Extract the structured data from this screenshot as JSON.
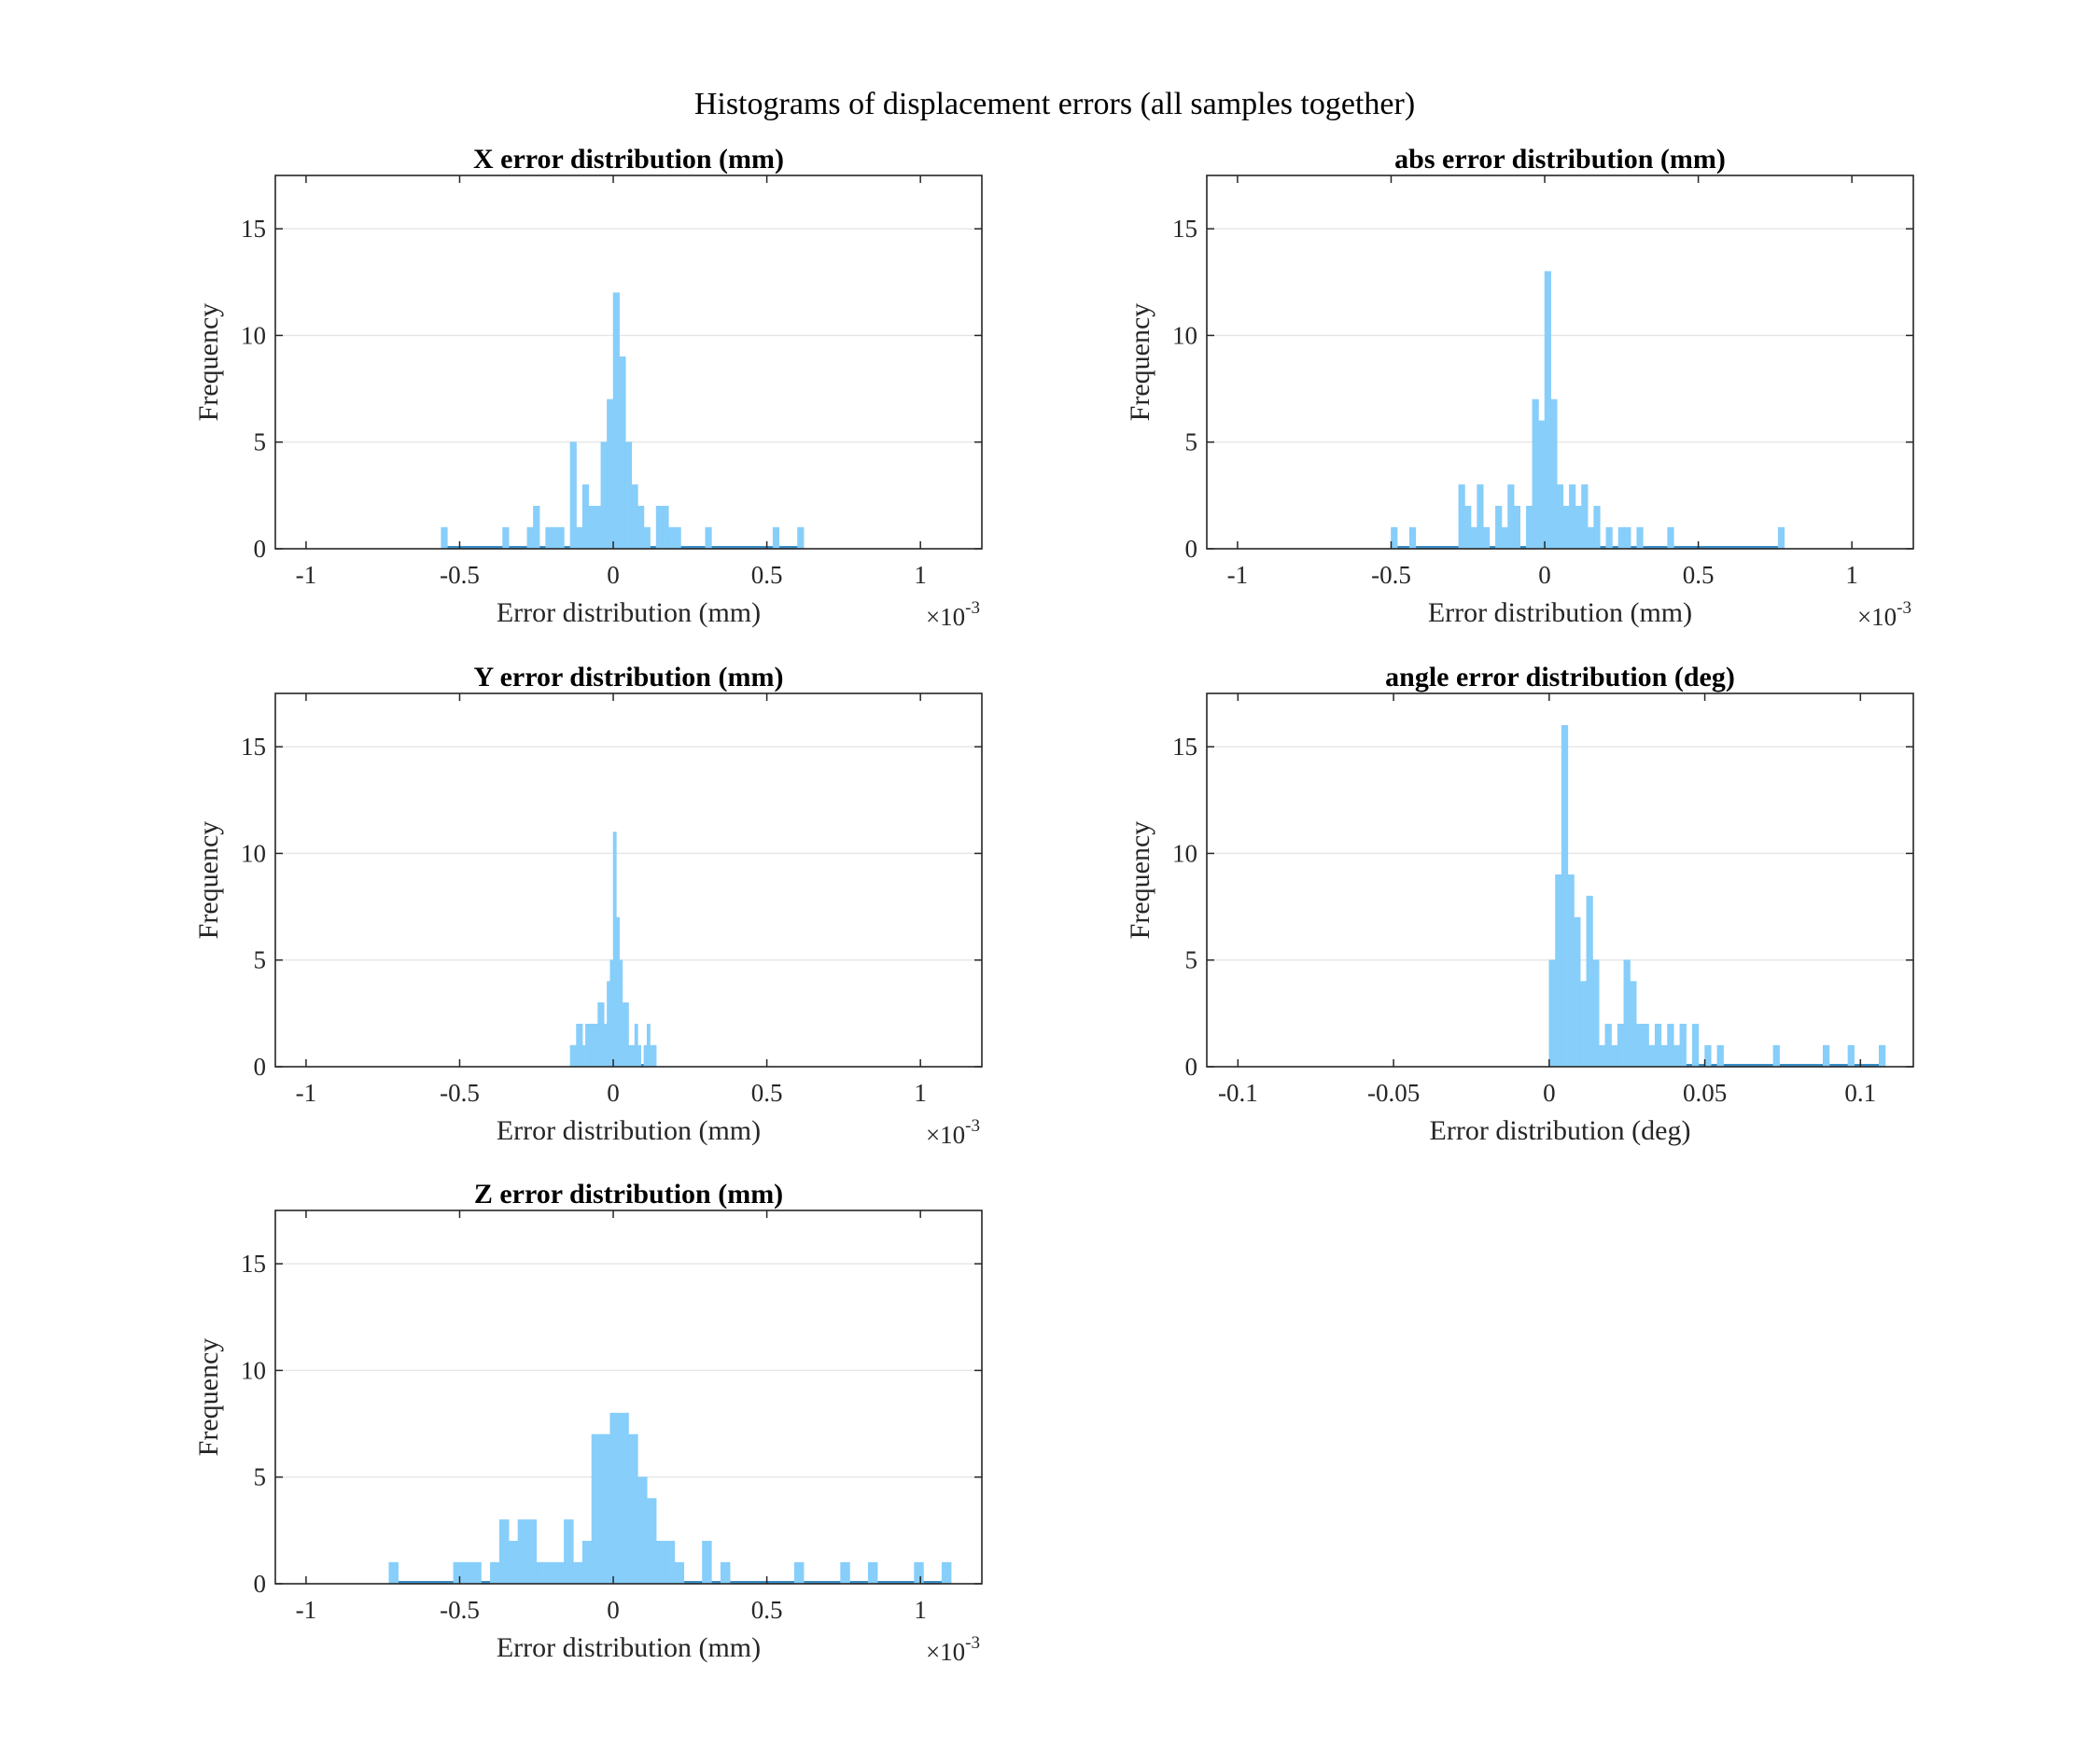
{
  "figure": {
    "title": "Histograms of displacement errors (all samples together)"
  },
  "colors": {
    "bar": "#87CEFA",
    "baseline": "#3a8fc6",
    "axis": "#262626",
    "grid": "#e6e6e6"
  },
  "chart_data": [
    {
      "id": "x",
      "type": "bar",
      "title": "X error distribution (mm)",
      "xlabel": "Error distribution (mm)",
      "ylabel": "Frequency",
      "x_exponent": {
        "base": "×10",
        "power": "-3"
      },
      "xlim": [
        -1.1,
        1.2
      ],
      "ylim": [
        0,
        17.5
      ],
      "xticks": [
        -1,
        -0.5,
        0,
        0.5,
        1
      ],
      "xtick_labels": [
        "-1",
        "-0.5",
        "0",
        "0.5",
        "1"
      ],
      "yticks": [
        0,
        5,
        10,
        15
      ],
      "ytick_labels": [
        "0",
        "5",
        "10",
        "15"
      ],
      "grid": true,
      "bin_width": 0.02,
      "bins": [
        {
          "x": -0.56,
          "count": 1
        },
        {
          "x": -0.36,
          "count": 1
        },
        {
          "x": -0.28,
          "count": 1
        },
        {
          "x": -0.26,
          "count": 2
        },
        {
          "x": -0.22,
          "count": 1
        },
        {
          "x": -0.2,
          "count": 1
        },
        {
          "x": -0.18,
          "count": 1
        },
        {
          "x": -0.14,
          "count": 5
        },
        {
          "x": -0.12,
          "count": 1
        },
        {
          "x": -0.1,
          "count": 3
        },
        {
          "x": -0.08,
          "count": 2
        },
        {
          "x": -0.06,
          "count": 2
        },
        {
          "x": -0.04,
          "count": 5
        },
        {
          "x": -0.02,
          "count": 7
        },
        {
          "x": 0.0,
          "count": 12
        },
        {
          "x": 0.02,
          "count": 9
        },
        {
          "x": 0.04,
          "count": 5
        },
        {
          "x": 0.06,
          "count": 3
        },
        {
          "x": 0.08,
          "count": 2
        },
        {
          "x": 0.1,
          "count": 1
        },
        {
          "x": 0.14,
          "count": 2
        },
        {
          "x": 0.16,
          "count": 2
        },
        {
          "x": 0.18,
          "count": 1
        },
        {
          "x": 0.2,
          "count": 1
        },
        {
          "x": 0.3,
          "count": 1
        },
        {
          "x": 0.52,
          "count": 1
        },
        {
          "x": 0.6,
          "count": 1
        }
      ]
    },
    {
      "id": "abs",
      "type": "bar",
      "title": "abs error distribution (mm)",
      "xlabel": "Error distribution (mm)",
      "ylabel": "Frequency",
      "x_exponent": {
        "base": "×10",
        "power": "-3"
      },
      "xlim": [
        -1.1,
        1.2
      ],
      "ylim": [
        0,
        17.5
      ],
      "xticks": [
        -1,
        -0.5,
        0,
        0.5,
        1
      ],
      "xtick_labels": [
        "-1",
        "-0.5",
        "0",
        "0.5",
        "1"
      ],
      "yticks": [
        0,
        5,
        10,
        15
      ],
      "ytick_labels": [
        "0",
        "5",
        "10",
        "15"
      ],
      "grid": true,
      "bin_width": 0.02,
      "bins": [
        {
          "x": -0.5,
          "count": 1
        },
        {
          "x": -0.44,
          "count": 1
        },
        {
          "x": -0.28,
          "count": 3
        },
        {
          "x": -0.26,
          "count": 2
        },
        {
          "x": -0.24,
          "count": 1
        },
        {
          "x": -0.22,
          "count": 3
        },
        {
          "x": -0.2,
          "count": 1
        },
        {
          "x": -0.16,
          "count": 2
        },
        {
          "x": -0.14,
          "count": 1
        },
        {
          "x": -0.12,
          "count": 3
        },
        {
          "x": -0.1,
          "count": 2
        },
        {
          "x": -0.06,
          "count": 2
        },
        {
          "x": -0.04,
          "count": 7
        },
        {
          "x": -0.02,
          "count": 6
        },
        {
          "x": 0.0,
          "count": 13
        },
        {
          "x": 0.02,
          "count": 7
        },
        {
          "x": 0.04,
          "count": 3
        },
        {
          "x": 0.06,
          "count": 2
        },
        {
          "x": 0.08,
          "count": 3
        },
        {
          "x": 0.1,
          "count": 2
        },
        {
          "x": 0.12,
          "count": 3
        },
        {
          "x": 0.14,
          "count": 1
        },
        {
          "x": 0.16,
          "count": 2
        },
        {
          "x": 0.2,
          "count": 1
        },
        {
          "x": 0.24,
          "count": 1
        },
        {
          "x": 0.26,
          "count": 1
        },
        {
          "x": 0.3,
          "count": 1
        },
        {
          "x": 0.4,
          "count": 1
        },
        {
          "x": 0.76,
          "count": 1
        }
      ]
    },
    {
      "id": "y",
      "type": "bar",
      "title": "Y error distribution (mm)",
      "xlabel": "Error distribution (mm)",
      "ylabel": "Frequency",
      "x_exponent": {
        "base": "×10",
        "power": "-3"
      },
      "xlim": [
        -1.1,
        1.2
      ],
      "ylim": [
        0,
        17.5
      ],
      "xticks": [
        -1,
        -0.5,
        0,
        0.5,
        1
      ],
      "xtick_labels": [
        "-1",
        "-0.5",
        "0",
        "0.5",
        "1"
      ],
      "yticks": [
        0,
        5,
        10,
        15
      ],
      "ytick_labels": [
        "0",
        "5",
        "10",
        "15"
      ],
      "grid": true,
      "bin_width": 0.01,
      "bins": [
        {
          "x": -0.14,
          "count": 1
        },
        {
          "x": -0.13,
          "count": 1
        },
        {
          "x": -0.12,
          "count": 2
        },
        {
          "x": -0.11,
          "count": 2
        },
        {
          "x": -0.1,
          "count": 1
        },
        {
          "x": -0.09,
          "count": 2
        },
        {
          "x": -0.08,
          "count": 2
        },
        {
          "x": -0.07,
          "count": 2
        },
        {
          "x": -0.06,
          "count": 2
        },
        {
          "x": -0.05,
          "count": 3
        },
        {
          "x": -0.04,
          "count": 3
        },
        {
          "x": -0.03,
          "count": 2
        },
        {
          "x": -0.02,
          "count": 4
        },
        {
          "x": -0.01,
          "count": 5
        },
        {
          "x": 0.0,
          "count": 11
        },
        {
          "x": 0.01,
          "count": 7
        },
        {
          "x": 0.02,
          "count": 5
        },
        {
          "x": 0.03,
          "count": 3
        },
        {
          "x": 0.04,
          "count": 3
        },
        {
          "x": 0.05,
          "count": 1
        },
        {
          "x": 0.06,
          "count": 1
        },
        {
          "x": 0.07,
          "count": 2
        },
        {
          "x": 0.08,
          "count": 1
        },
        {
          "x": 0.1,
          "count": 1
        },
        {
          "x": 0.11,
          "count": 2
        },
        {
          "x": 0.12,
          "count": 1
        },
        {
          "x": 0.13,
          "count": 1
        }
      ]
    },
    {
      "id": "angle",
      "type": "bar",
      "title": "angle error distribution (deg)",
      "xlabel": "Error distribution (deg)",
      "ylabel": "Frequency",
      "xlim": [
        -0.11,
        0.117
      ],
      "ylim": [
        0,
        17.5
      ],
      "xticks": [
        -0.1,
        -0.05,
        0,
        0.05,
        0.1
      ],
      "xtick_labels": [
        "-0.1",
        "-0.05",
        "0",
        "0.05",
        "0.1"
      ],
      "yticks": [
        0,
        5,
        10,
        15
      ],
      "ytick_labels": [
        "0",
        "5",
        "10",
        "15"
      ],
      "grid": true,
      "bin_width": 0.002,
      "bins": [
        {
          "x": 0.0,
          "count": 5
        },
        {
          "x": 0.002,
          "count": 9
        },
        {
          "x": 0.004,
          "count": 16
        },
        {
          "x": 0.006,
          "count": 9
        },
        {
          "x": 0.008,
          "count": 7
        },
        {
          "x": 0.01,
          "count": 4
        },
        {
          "x": 0.012,
          "count": 8
        },
        {
          "x": 0.014,
          "count": 5
        },
        {
          "x": 0.016,
          "count": 1
        },
        {
          "x": 0.018,
          "count": 2
        },
        {
          "x": 0.02,
          "count": 1
        },
        {
          "x": 0.022,
          "count": 2
        },
        {
          "x": 0.024,
          "count": 5
        },
        {
          "x": 0.026,
          "count": 4
        },
        {
          "x": 0.028,
          "count": 2
        },
        {
          "x": 0.03,
          "count": 2
        },
        {
          "x": 0.032,
          "count": 1
        },
        {
          "x": 0.034,
          "count": 2
        },
        {
          "x": 0.036,
          "count": 1
        },
        {
          "x": 0.038,
          "count": 2
        },
        {
          "x": 0.04,
          "count": 1
        },
        {
          "x": 0.042,
          "count": 2
        },
        {
          "x": 0.046,
          "count": 2
        },
        {
          "x": 0.05,
          "count": 1
        },
        {
          "x": 0.054,
          "count": 1
        },
        {
          "x": 0.072,
          "count": 1
        },
        {
          "x": 0.088,
          "count": 1
        },
        {
          "x": 0.096,
          "count": 1
        },
        {
          "x": 0.106,
          "count": 1
        }
      ]
    },
    {
      "id": "z",
      "type": "bar",
      "title": "Z error distribution (mm)",
      "xlabel": "Error distribution (mm)",
      "ylabel": "Frequency",
      "x_exponent": {
        "base": "×10",
        "power": "-3"
      },
      "xlim": [
        -1.1,
        1.2
      ],
      "ylim": [
        0,
        17.5
      ],
      "xticks": [
        -1,
        -0.5,
        0,
        0.5,
        1
      ],
      "xtick_labels": [
        "-1",
        "-0.5",
        "0",
        "0.5",
        "1"
      ],
      "yticks": [
        0,
        5,
        10,
        15
      ],
      "ytick_labels": [
        "0",
        "5",
        "10",
        "15"
      ],
      "grid": true,
      "bin_width": 0.03,
      "bins": [
        {
          "x": -0.73,
          "count": 1
        },
        {
          "x": -0.52,
          "count": 1
        },
        {
          "x": -0.49,
          "count": 1
        },
        {
          "x": -0.46,
          "count": 1
        },
        {
          "x": -0.4,
          "count": 1
        },
        {
          "x": -0.37,
          "count": 3
        },
        {
          "x": -0.34,
          "count": 2
        },
        {
          "x": -0.31,
          "count": 3
        },
        {
          "x": -0.28,
          "count": 3
        },
        {
          "x": -0.25,
          "count": 1
        },
        {
          "x": -0.22,
          "count": 1
        },
        {
          "x": -0.19,
          "count": 1
        },
        {
          "x": -0.16,
          "count": 3
        },
        {
          "x": -0.13,
          "count": 1
        },
        {
          "x": -0.1,
          "count": 2
        },
        {
          "x": -0.07,
          "count": 7
        },
        {
          "x": -0.04,
          "count": 7
        },
        {
          "x": -0.01,
          "count": 8
        },
        {
          "x": 0.02,
          "count": 8
        },
        {
          "x": 0.05,
          "count": 7
        },
        {
          "x": 0.08,
          "count": 5
        },
        {
          "x": 0.11,
          "count": 4
        },
        {
          "x": 0.14,
          "count": 2
        },
        {
          "x": 0.17,
          "count": 2
        },
        {
          "x": 0.2,
          "count": 1
        },
        {
          "x": 0.29,
          "count": 2
        },
        {
          "x": 0.35,
          "count": 1
        },
        {
          "x": 0.59,
          "count": 1
        },
        {
          "x": 0.74,
          "count": 1
        },
        {
          "x": 0.83,
          "count": 1
        },
        {
          "x": 0.98,
          "count": 1
        },
        {
          "x": 1.07,
          "count": 1
        }
      ]
    }
  ]
}
